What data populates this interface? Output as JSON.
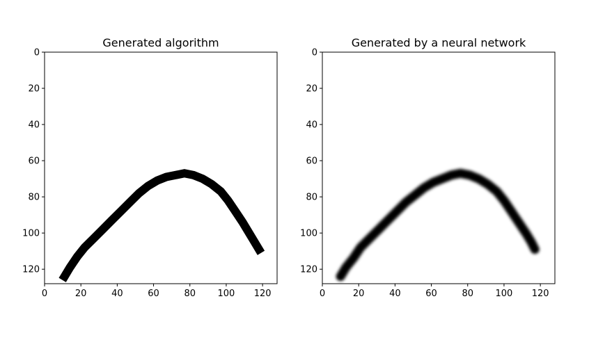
{
  "chart_data": [
    {
      "type": "image",
      "title": "Generated algorithm",
      "style": "sharp",
      "xlim": [
        0,
        128
      ],
      "ylim": [
        128,
        0
      ],
      "xticks": [
        0,
        20,
        40,
        60,
        80,
        100,
        120
      ],
      "yticks": [
        0,
        20,
        40,
        60,
        80,
        100,
        120
      ],
      "stroke_color": "#000000",
      "background": "#ffffff",
      "curve": [
        {
          "x": 11,
          "y": 124
        },
        {
          "x": 14,
          "y": 119
        },
        {
          "x": 18,
          "y": 113
        },
        {
          "x": 22,
          "y": 108
        },
        {
          "x": 27,
          "y": 103
        },
        {
          "x": 32,
          "y": 98
        },
        {
          "x": 37,
          "y": 93
        },
        {
          "x": 42,
          "y": 88
        },
        {
          "x": 47,
          "y": 83
        },
        {
          "x": 52,
          "y": 78
        },
        {
          "x": 57,
          "y": 74
        },
        {
          "x": 62,
          "y": 71
        },
        {
          "x": 67,
          "y": 69
        },
        {
          "x": 72,
          "y": 68
        },
        {
          "x": 77,
          "y": 67
        },
        {
          "x": 82,
          "y": 68
        },
        {
          "x": 87,
          "y": 70
        },
        {
          "x": 92,
          "y": 73
        },
        {
          "x": 97,
          "y": 77
        },
        {
          "x": 101,
          "y": 82
        },
        {
          "x": 105,
          "y": 88
        },
        {
          "x": 109,
          "y": 94
        },
        {
          "x": 112,
          "y": 99
        },
        {
          "x": 115,
          "y": 104
        },
        {
          "x": 118,
          "y": 109
        }
      ]
    },
    {
      "type": "image",
      "title": "Generated by a neural network",
      "style": "blurred",
      "xlim": [
        0,
        128
      ],
      "ylim": [
        128,
        0
      ],
      "xticks": [
        0,
        20,
        40,
        60,
        80,
        100,
        120
      ],
      "yticks": [
        0,
        20,
        40,
        60,
        80,
        100,
        120
      ],
      "stroke_color": "#000000",
      "background": "#ffffff",
      "curve": [
        {
          "x": 10,
          "y": 124
        },
        {
          "x": 13,
          "y": 119
        },
        {
          "x": 17,
          "y": 114
        },
        {
          "x": 21,
          "y": 108
        },
        {
          "x": 26,
          "y": 103
        },
        {
          "x": 31,
          "y": 98
        },
        {
          "x": 36,
          "y": 93
        },
        {
          "x": 41,
          "y": 88
        },
        {
          "x": 46,
          "y": 83
        },
        {
          "x": 51,
          "y": 79
        },
        {
          "x": 56,
          "y": 75
        },
        {
          "x": 61,
          "y": 72
        },
        {
          "x": 66,
          "y": 70
        },
        {
          "x": 71,
          "y": 68
        },
        {
          "x": 76,
          "y": 67
        },
        {
          "x": 81,
          "y": 68
        },
        {
          "x": 86,
          "y": 70
        },
        {
          "x": 91,
          "y": 73
        },
        {
          "x": 96,
          "y": 77
        },
        {
          "x": 100,
          "y": 82
        },
        {
          "x": 104,
          "y": 88
        },
        {
          "x": 108,
          "y": 94
        },
        {
          "x": 112,
          "y": 100
        },
        {
          "x": 115,
          "y": 105
        },
        {
          "x": 117,
          "y": 109
        }
      ]
    }
  ]
}
